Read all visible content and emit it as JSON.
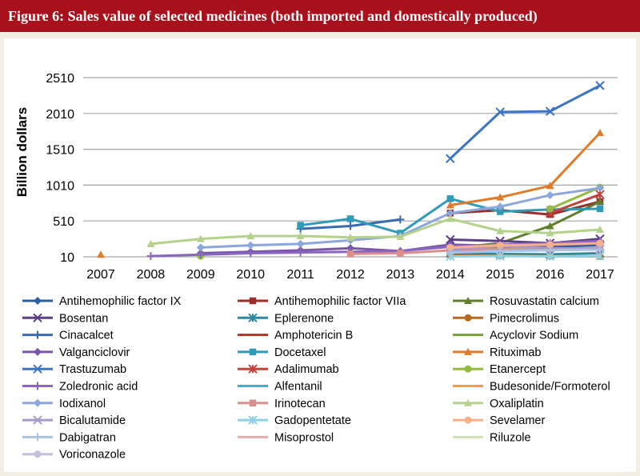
{
  "header": {
    "title": "Figure 6: Sales value of selected medicines (both imported and domestically produced)"
  },
  "colors": {
    "title_bg": "#a8101c",
    "frame_bg": "#f2eee4",
    "panel_bg": "#ffffff",
    "grid": "#a6a6a6"
  },
  "chart_data": {
    "type": "line",
    "title": "",
    "xlabel": "",
    "ylabel": "Billion dollars",
    "x": [
      "2007",
      "2008",
      "2009",
      "2010",
      "2011",
      "2012",
      "2013",
      "2014",
      "2015",
      "2016",
      "2017"
    ],
    "yticks": [
      10,
      510,
      1010,
      1510,
      2010,
      2510
    ],
    "ytick_labels": [
      "10",
      "510",
      "1010",
      "1510",
      "2010",
      "2510"
    ],
    "ylim": [
      10,
      2510
    ],
    "grid": true,
    "legend_position": "bottom",
    "legend_columns": 3,
    "series": [
      {
        "name": "Antihemophilic factor IX",
        "color": "#2e5fa1",
        "marker": "diamond",
        "values": [
          null,
          null,
          null,
          null,
          null,
          null,
          null,
          100,
          130,
          150,
          170
        ]
      },
      {
        "name": "Antihemophilic factor VIIa",
        "color": "#9b2d2a",
        "marker": "square",
        "values": [
          null,
          null,
          null,
          null,
          null,
          null,
          null,
          620,
          660,
          600,
          780
        ]
      },
      {
        "name": "Rosuvastatin calcium",
        "color": "#5f7f2c",
        "marker": "triangle",
        "values": [
          null,
          null,
          null,
          null,
          null,
          null,
          null,
          130,
          200,
          440,
          780
        ]
      },
      {
        "name": "Bosentan",
        "color": "#5b3e85",
        "marker": "x",
        "values": [
          null,
          null,
          null,
          null,
          null,
          null,
          null,
          250,
          230,
          200,
          260
        ]
      },
      {
        "name": "Eplerenone",
        "color": "#2c8a9c",
        "marker": "star",
        "values": [
          null,
          null,
          null,
          null,
          null,
          null,
          null,
          60,
          50,
          45,
          60
        ]
      },
      {
        "name": "Pimecrolimus",
        "color": "#b86a22",
        "marker": "circle",
        "values": [
          null,
          null,
          null,
          null,
          null,
          null,
          null,
          30,
          25,
          20,
          15
        ]
      },
      {
        "name": "Cinacalcet",
        "color": "#3a6bb0",
        "marker": "plus",
        "values": [
          null,
          null,
          null,
          null,
          400,
          440,
          530,
          null,
          null,
          null,
          null
        ]
      },
      {
        "name": "Amphotericin B",
        "color": "#b3302c",
        "marker": "dash",
        "values": [
          null,
          null,
          null,
          null,
          null,
          null,
          null,
          null,
          null,
          null,
          null
        ]
      },
      {
        "name": "Acyclovir Sodium",
        "color": "#7aa13a",
        "marker": "dash",
        "values": [
          null,
          null,
          null,
          null,
          null,
          null,
          null,
          null,
          null,
          null,
          null
        ]
      },
      {
        "name": "Valganciclovir",
        "color": "#7b55a8",
        "marker": "diamond",
        "values": [
          null,
          null,
          60,
          80,
          100,
          130,
          90,
          180,
          160,
          170,
          200
        ]
      },
      {
        "name": "Docetaxel",
        "color": "#2f9bb8",
        "marker": "square",
        "values": [
          null,
          null,
          null,
          null,
          450,
          540,
          340,
          820,
          640,
          670,
          680
        ]
      },
      {
        "name": "Rituximab",
        "color": "#e07b2a",
        "marker": "triangle",
        "values": [
          40,
          null,
          null,
          null,
          null,
          null,
          null,
          730,
          840,
          1000,
          1740
        ]
      },
      {
        "name": "Trastuzumab",
        "color": "#3d74c4",
        "marker": "x",
        "values": [
          null,
          null,
          null,
          null,
          null,
          null,
          null,
          1380,
          2030,
          2040,
          2400
        ]
      },
      {
        "name": "Adalimumab",
        "color": "#c4423c",
        "marker": "star",
        "values": [
          null,
          null,
          null,
          null,
          null,
          null,
          null,
          null,
          null,
          620,
          880
        ]
      },
      {
        "name": "Etanercept",
        "color": "#93bb3f",
        "marker": "circle",
        "values": [
          null,
          null,
          20,
          null,
          null,
          null,
          null,
          null,
          null,
          680,
          980
        ]
      },
      {
        "name": "Zoledronic acid",
        "color": "#8a66c2",
        "marker": "plus",
        "values": [
          null,
          20,
          40,
          60,
          70,
          80,
          90,
          150,
          180,
          200,
          230
        ]
      },
      {
        "name": "Alfentanil",
        "color": "#3fb0ce",
        "marker": "dash",
        "values": [
          null,
          null,
          null,
          null,
          null,
          null,
          null,
          null,
          null,
          null,
          null
        ]
      },
      {
        "name": "Budesonide/Formoterol",
        "color": "#f09c4a",
        "marker": "dash",
        "values": [
          null,
          null,
          null,
          null,
          null,
          null,
          null,
          null,
          null,
          null,
          null
        ]
      },
      {
        "name": "Iodixanol",
        "color": "#8aa8db",
        "marker": "diamond",
        "values": [
          null,
          null,
          140,
          170,
          190,
          240,
          300,
          620,
          710,
          870,
          970
        ]
      },
      {
        "name": "Irinotecan",
        "color": "#db8e8b",
        "marker": "square",
        "values": [
          null,
          null,
          null,
          null,
          null,
          50,
          60,
          100,
          120,
          120,
          130
        ]
      },
      {
        "name": "Oxaliplatin",
        "color": "#b5d28d",
        "marker": "triangle",
        "values": [
          null,
          190,
          260,
          300,
          300,
          280,
          290,
          540,
          370,
          340,
          390
        ]
      },
      {
        "name": "Bicalutamide",
        "color": "#a79bc6",
        "marker": "x",
        "values": [
          null,
          null,
          null,
          null,
          null,
          null,
          null,
          110,
          160,
          130,
          120
        ]
      },
      {
        "name": "Gadopentetate",
        "color": "#8fd0e2",
        "marker": "star",
        "values": [
          null,
          null,
          null,
          null,
          null,
          null,
          null,
          15,
          20,
          15,
          20
        ]
      },
      {
        "name": "Sevelamer",
        "color": "#f7b088",
        "marker": "circle",
        "values": [
          null,
          null,
          null,
          null,
          null,
          null,
          null,
          140,
          170,
          180,
          200
        ]
      },
      {
        "name": "Dabigatran",
        "color": "#a9c3e8",
        "marker": "plus",
        "values": [
          null,
          null,
          null,
          null,
          null,
          null,
          null,
          70,
          90,
          100,
          110
        ]
      },
      {
        "name": "Misoprostol",
        "color": "#e3aeae",
        "marker": "dash",
        "values": [
          null,
          null,
          null,
          null,
          null,
          null,
          null,
          null,
          null,
          null,
          null
        ]
      },
      {
        "name": "Riluzole",
        "color": "#cfe2b3",
        "marker": "dash",
        "values": [
          null,
          null,
          null,
          null,
          null,
          null,
          null,
          null,
          null,
          null,
          null
        ]
      },
      {
        "name": "Voriconazole",
        "color": "#c6bddf",
        "marker": "circle",
        "values": [
          null,
          null,
          null,
          null,
          null,
          null,
          null,
          null,
          null,
          null,
          null
        ]
      }
    ]
  }
}
